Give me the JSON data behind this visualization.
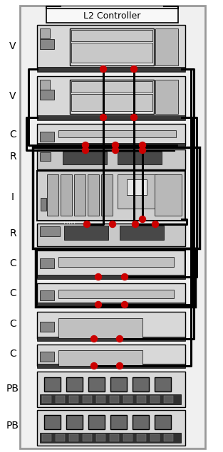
{
  "bg": "#ffffff",
  "rack_fill": "#f0f0f0",
  "rack_edge": "#999999",
  "card_light": "#d8d8d8",
  "card_med": "#c8c8c8",
  "card_inner": "#e8e8e8",
  "card_slot": "#b8b8b8",
  "card_bar": "#c0c0c0",
  "strip_dark": "#383838",
  "connector_dark": "#484848",
  "icon_gray": "#888888",
  "icon_light": "#aaaaaa",
  "hatch_gray": "#b0b0b0",
  "pb_dark": "#686868",
  "pb_strip": "#303030",
  "pb_seg": "#585858",
  "red": "#cc0000",
  "black": "#000000",
  "white": "#ffffff",
  "wire_lw": 2.2,
  "labels": [
    [
      "V",
      65
    ],
    [
      "V",
      135
    ],
    [
      "C",
      189
    ],
    [
      "R",
      220
    ],
    [
      "I",
      277
    ],
    [
      "R",
      328
    ],
    [
      "C",
      370
    ],
    [
      "C",
      412
    ],
    [
      "C",
      455
    ],
    [
      "C",
      497
    ],
    [
      "PB",
      546
    ],
    [
      "PB",
      598
    ]
  ]
}
